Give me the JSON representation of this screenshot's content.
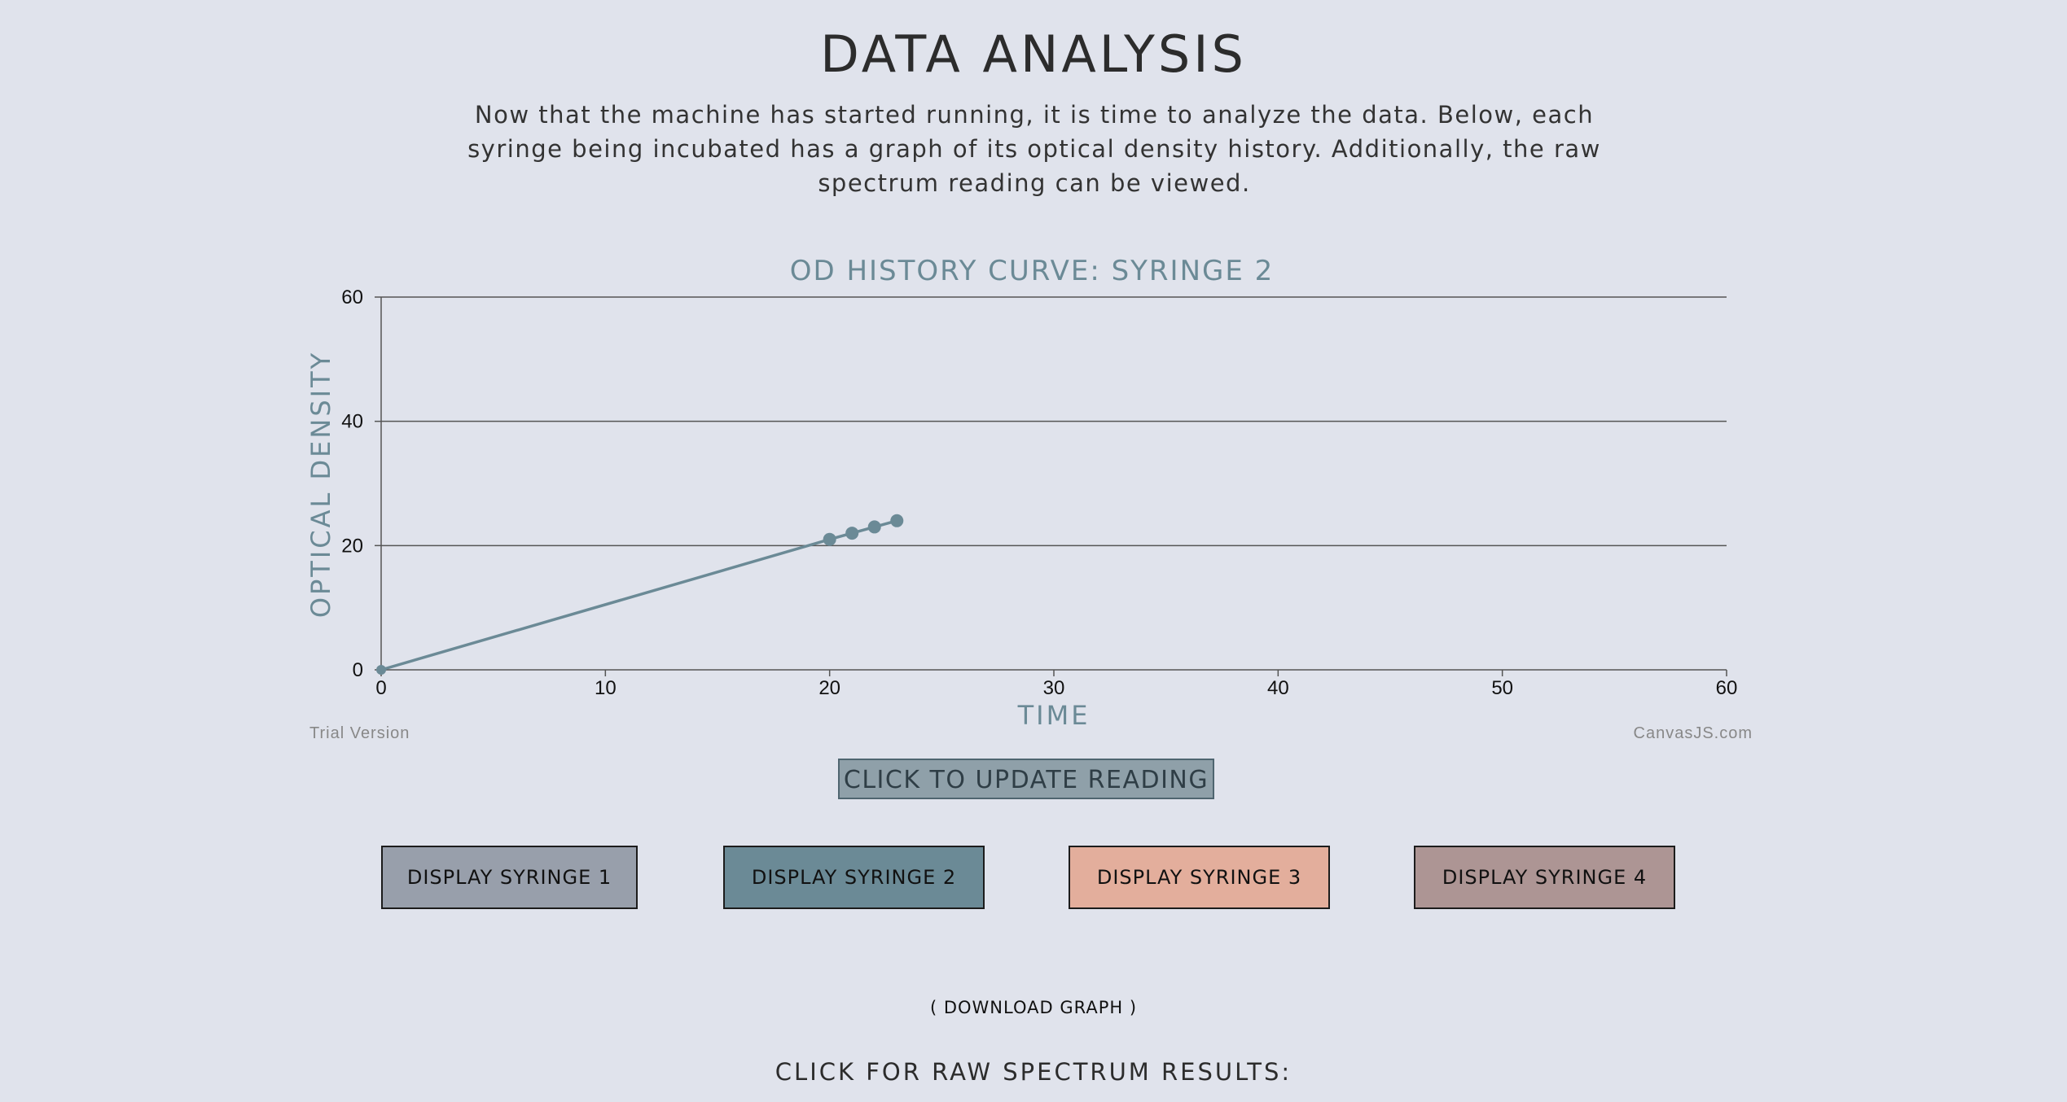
{
  "page": {
    "title": "DATA ANALYSIS",
    "intro": "Now that the machine has started running, it is time to analyze the data. Below, each syringe being incubated has a graph of its optical density history. Additionally, the raw spectrum reading can be viewed."
  },
  "chart_data": {
    "type": "line",
    "title": "OD HISTORY CURVE: SYRINGE 2",
    "xlabel": "TIME",
    "ylabel": "OPTICAL DENSITY",
    "xlim": [
      0,
      60
    ],
    "ylim": [
      0,
      60
    ],
    "x_ticks": [
      "0",
      "10",
      "20",
      "30",
      "40",
      "50",
      "60"
    ],
    "y_ticks": [
      "0",
      "20",
      "40",
      "60"
    ],
    "grid": "horizontal",
    "series": [
      {
        "color": "#6b8a96",
        "points": [
          {
            "x": 0,
            "y": 0
          },
          {
            "x": 20,
            "y": 21
          },
          {
            "x": 21,
            "y": 22
          },
          {
            "x": 22,
            "y": 23
          },
          {
            "x": 23,
            "y": 24
          }
        ]
      }
    ],
    "credit_left": "Trial Version",
    "credit_right": "CanvasJS.com"
  },
  "controls": {
    "update_label": "CLICK TO UPDATE READING",
    "syringe_buttons": [
      {
        "label": "DISPLAY SYRINGE 1",
        "color": "#989fab"
      },
      {
        "label": "DISPLAY SYRINGE 2",
        "color": "#6b8a96"
      },
      {
        "label": "DISPLAY SYRINGE 3",
        "color": "#e3ae9c"
      },
      {
        "label": "DISPLAY SYRINGE 4",
        "color": "#ad9594"
      }
    ],
    "download_label": "( DOWNLOAD GRAPH )",
    "raw_label": "CLICK FOR RAW SPECTRUM RESULTS:"
  }
}
